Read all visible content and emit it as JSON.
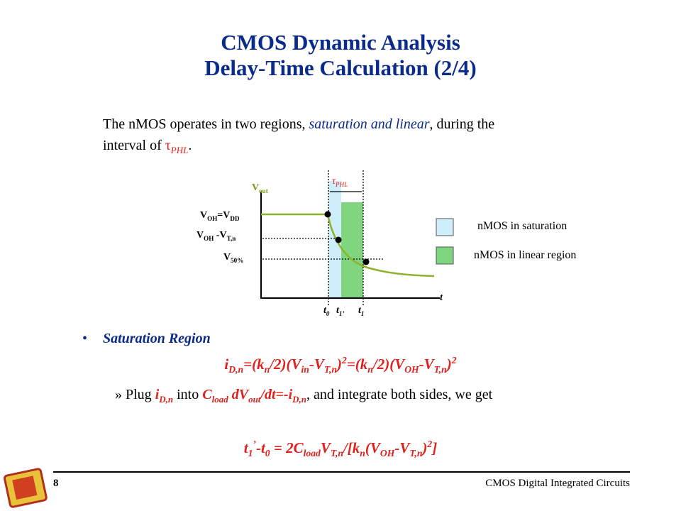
{
  "title": [
    "CMOS Dynamic Analysis",
    "Delay-Time Calculation (2/4)"
  ],
  "intro": [
    "The nMOS operates in two regions, ",
    "saturation and linear",
    ", during the",
    "interval of ",
    "τ",
    "PHL",
    "."
  ],
  "diagram": {
    "v_out": [
      "V",
      "out"
    ],
    "voh_vdd": [
      "V",
      "OH",
      "=V",
      "DD"
    ],
    "voh_vtn": [
      "V",
      "OH",
      " -V",
      "T,n"
    ],
    "v50": [
      "V",
      "50%"
    ],
    "tau": [
      "τ",
      "PHL"
    ],
    "t_axis": "t",
    "t0": [
      "t",
      "0"
    ],
    "t1p": [
      "t",
      "1’"
    ],
    "t1": [
      "t",
      "1"
    ]
  },
  "legend": [
    "nMOS in saturation",
    "nMOS in linear region"
  ],
  "bullet": {
    "marker": "•",
    "text": "Saturation Region"
  },
  "equation1": [
    "i",
    "D,n",
    "=(k",
    "n",
    "/2)(V",
    "in",
    "-V",
    "T,n",
    ")",
    "2",
    "=(k",
    "n",
    "/2)(V",
    "OH",
    "-V",
    "T,n",
    ")",
    "2"
  ],
  "sub_bullet": {
    "marker": "»",
    "parts": [
      "Plug ",
      "i",
      "D,n",
      " into ",
      "C",
      "load",
      " dV",
      "out",
      "/dt=-i",
      "D,n",
      ", and integrate both sides, we get"
    ]
  },
  "equation2": [
    "t",
    "1",
    "’",
    "-t",
    "0",
    " = 2C",
    "load",
    "V",
    "T,n",
    "/[k",
    "n",
    "(V",
    "OH",
    "-V",
    "T,n",
    ")",
    "2",
    "]"
  ],
  "footer": {
    "page": "8",
    "course": "CMOS Digital Integrated Circuits"
  }
}
